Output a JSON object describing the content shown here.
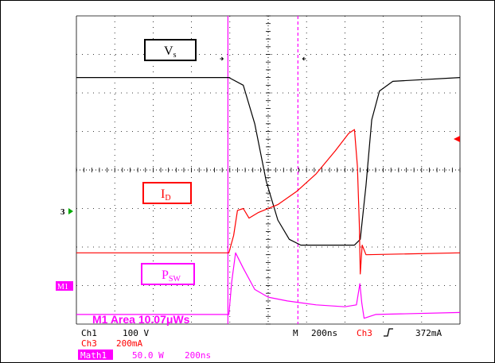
{
  "chart_data": {
    "type": "line",
    "title": "",
    "xlabel": "",
    "ylabel": "",
    "grid": true,
    "x_unit": "ns",
    "xlim": [
      0,
      2000
    ],
    "ylim_div": [
      0,
      8
    ],
    "series": [
      {
        "name": "Vs",
        "color": "#000000",
        "label_main": "V",
        "label_sub": "s",
        "points": [
          [
            0,
            6.4
          ],
          [
            795,
            6.4
          ],
          [
            870,
            6.2
          ],
          [
            930,
            5.2
          ],
          [
            990,
            3.7
          ],
          [
            1050,
            2.7
          ],
          [
            1110,
            2.2
          ],
          [
            1170,
            2.05
          ],
          [
            1450,
            2.05
          ],
          [
            1480,
            2.2
          ],
          [
            1510,
            3.6
          ],
          [
            1540,
            5.3
          ],
          [
            1580,
            6.05
          ],
          [
            1650,
            6.3
          ],
          [
            2000,
            6.4
          ]
        ]
      },
      {
        "name": "ID",
        "color": "#ff0000",
        "label_main": "I",
        "label_sub": "D",
        "points": [
          [
            0,
            1.85
          ],
          [
            795,
            1.85
          ],
          [
            820,
            2.3
          ],
          [
            840,
            2.95
          ],
          [
            870,
            3.0
          ],
          [
            900,
            2.75
          ],
          [
            950,
            2.9
          ],
          [
            1050,
            3.1
          ],
          [
            1150,
            3.45
          ],
          [
            1250,
            3.9
          ],
          [
            1350,
            4.5
          ],
          [
            1420,
            4.95
          ],
          [
            1450,
            5.05
          ],
          [
            1465,
            4.1
          ],
          [
            1475,
            2.6
          ],
          [
            1480,
            1.3
          ],
          [
            1490,
            2.05
          ],
          [
            1510,
            1.8
          ],
          [
            2000,
            1.85
          ]
        ]
      },
      {
        "name": "Psw",
        "color": "#ff00ff",
        "label_main": "P",
        "label_sub": "SW",
        "points": [
          [
            0,
            0.25
          ],
          [
            795,
            0.25
          ],
          [
            810,
            1.1
          ],
          [
            830,
            1.85
          ],
          [
            870,
            1.45
          ],
          [
            930,
            0.9
          ],
          [
            1000,
            0.7
          ],
          [
            1100,
            0.6
          ],
          [
            1250,
            0.5
          ],
          [
            1400,
            0.45
          ],
          [
            1460,
            0.5
          ],
          [
            1478,
            1.05
          ],
          [
            1488,
            0.55
          ],
          [
            1500,
            0.15
          ],
          [
            1560,
            0.25
          ],
          [
            2000,
            0.3
          ]
        ]
      }
    ],
    "markers": [
      {
        "name": "cursor-1",
        "x": 790,
        "style": "solid",
        "color": "#ff00ff"
      },
      {
        "name": "cursor-2",
        "x": 1155,
        "style": "dashed",
        "color": "#ff00ff"
      }
    ],
    "channel_markers": [
      "3",
      "M1"
    ],
    "measurement": "M1 Area 10.07μWs",
    "readout": {
      "ch1_label": "Ch1",
      "ch1_scale": "100 V",
      "ch3_label": "Ch3",
      "ch3_scale": "200mA",
      "math_label": "Math1",
      "math_scale": "50.0 W",
      "math_time": "200ns",
      "m_label": "M",
      "m_time": "200ns",
      "trig_source": "Ch3",
      "trig_level": "372mA"
    }
  }
}
